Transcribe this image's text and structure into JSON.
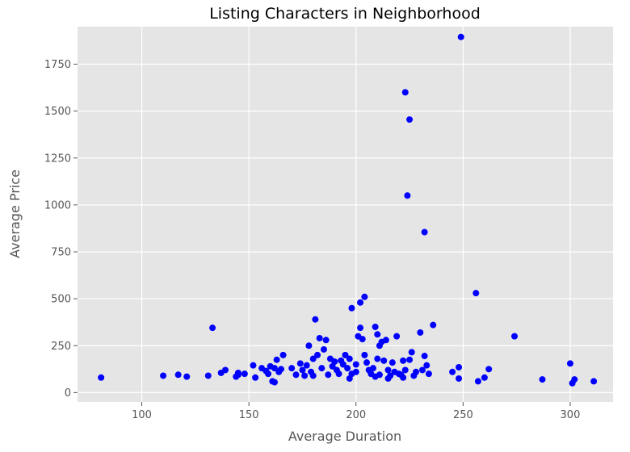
{
  "chart_data": {
    "type": "scatter",
    "title": "Listing Characters in Neighborhood",
    "xlabel": "Average Duration",
    "ylabel": "Average Price",
    "xlim": [
      70,
      320
    ],
    "ylim": [
      -50,
      1950
    ],
    "xticks": [
      100,
      150,
      200,
      250,
      300
    ],
    "yticks": [
      0,
      250,
      500,
      750,
      1000,
      1250,
      1500,
      1750
    ],
    "grid": true,
    "background": "#e5e5e5",
    "grid_color": "#ffffff",
    "point_color": "#0000ff",
    "points": [
      [
        81,
        80
      ],
      [
        110,
        90
      ],
      [
        117,
        95
      ],
      [
        121,
        85
      ],
      [
        131,
        90
      ],
      [
        133,
        345
      ],
      [
        137,
        105
      ],
      [
        139,
        120
      ],
      [
        144,
        85
      ],
      [
        145,
        105
      ],
      [
        145,
        95
      ],
      [
        148,
        100
      ],
      [
        152,
        145
      ],
      [
        153,
        80
      ],
      [
        156,
        130
      ],
      [
        158,
        115
      ],
      [
        159,
        100
      ],
      [
        160,
        140
      ],
      [
        161,
        60
      ],
      [
        162,
        130
      ],
      [
        162,
        55
      ],
      [
        163,
        175
      ],
      [
        164,
        110
      ],
      [
        165,
        125
      ],
      [
        166,
        200
      ],
      [
        170,
        130
      ],
      [
        172,
        95
      ],
      [
        174,
        155
      ],
      [
        175,
        120
      ],
      [
        176,
        90
      ],
      [
        177,
        145
      ],
      [
        178,
        250
      ],
      [
        179,
        110
      ],
      [
        180,
        180
      ],
      [
        180,
        90
      ],
      [
        181,
        390
      ],
      [
        182,
        200
      ],
      [
        183,
        290
      ],
      [
        184,
        130
      ],
      [
        185,
        230
      ],
      [
        186,
        280
      ],
      [
        187,
        95
      ],
      [
        188,
        180
      ],
      [
        189,
        140
      ],
      [
        190,
        165
      ],
      [
        191,
        120
      ],
      [
        192,
        100
      ],
      [
        193,
        170
      ],
      [
        194,
        150
      ],
      [
        195,
        200
      ],
      [
        196,
        130
      ],
      [
        197,
        180
      ],
      [
        197,
        75
      ],
      [
        198,
        450
      ],
      [
        198,
        100
      ],
      [
        200,
        150
      ],
      [
        200,
        110
      ],
      [
        201,
        300
      ],
      [
        202,
        480
      ],
      [
        202,
        345
      ],
      [
        203,
        285
      ],
      [
        204,
        510
      ],
      [
        204,
        200
      ],
      [
        205,
        160
      ],
      [
        206,
        120
      ],
      [
        207,
        100
      ],
      [
        208,
        130
      ],
      [
        209,
        350
      ],
      [
        209,
        85
      ],
      [
        210,
        180
      ],
      [
        210,
        310
      ],
      [
        211,
        250
      ],
      [
        211,
        95
      ],
      [
        212,
        270
      ],
      [
        213,
        170
      ],
      [
        214,
        280
      ],
      [
        215,
        120
      ],
      [
        215,
        75
      ],
      [
        216,
        90
      ],
      [
        217,
        160
      ],
      [
        218,
        110
      ],
      [
        219,
        300
      ],
      [
        220,
        100
      ],
      [
        221,
        95
      ],
      [
        222,
        170
      ],
      [
        222,
        80
      ],
      [
        223,
        1600
      ],
      [
        223,
        120
      ],
      [
        224,
        1050
      ],
      [
        225,
        1455
      ],
      [
        225,
        175
      ],
      [
        226,
        215
      ],
      [
        227,
        90
      ],
      [
        228,
        110
      ],
      [
        230,
        320
      ],
      [
        231,
        120
      ],
      [
        232,
        855
      ],
      [
        232,
        195
      ],
      [
        233,
        145
      ],
      [
        234,
        100
      ],
      [
        236,
        360
      ],
      [
        245,
        110
      ],
      [
        248,
        135
      ],
      [
        248,
        75
      ],
      [
        249,
        1895
      ],
      [
        256,
        530
      ],
      [
        257,
        60
      ],
      [
        260,
        80
      ],
      [
        262,
        125
      ],
      [
        274,
        300
      ],
      [
        287,
        70
      ],
      [
        300,
        155
      ],
      [
        301,
        50
      ],
      [
        302,
        70
      ],
      [
        311,
        60
      ]
    ]
  }
}
